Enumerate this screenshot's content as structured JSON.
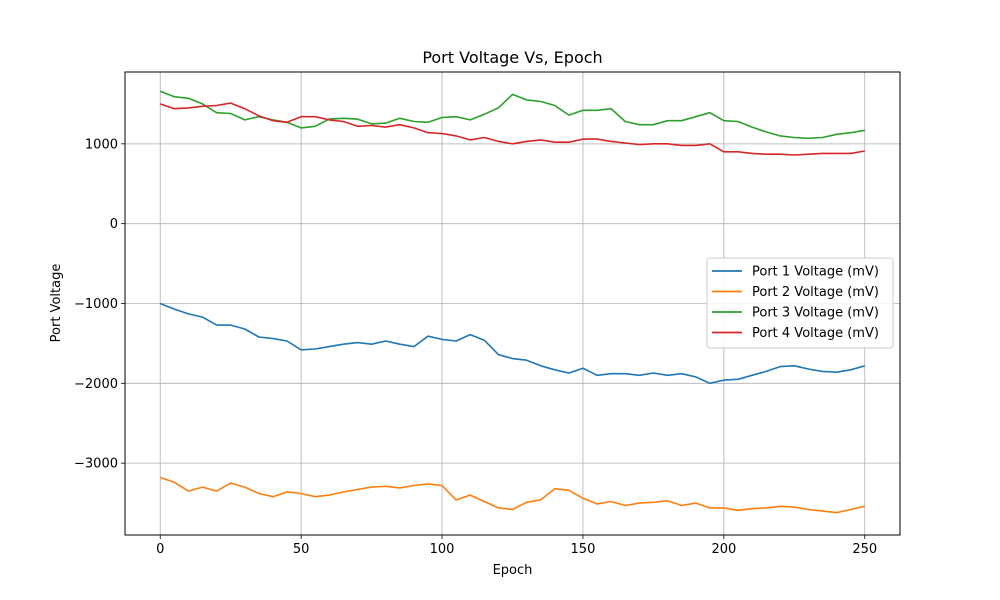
{
  "chart_data": {
    "type": "line",
    "title": "Port Voltage Vs, Epoch",
    "xlabel": "Epoch",
    "ylabel": "Port Voltage",
    "xlim": [
      -12.5,
      262.5
    ],
    "ylim": [
      -3900,
      1900
    ],
    "xticks": [
      0,
      50,
      100,
      150,
      200,
      250
    ],
    "yticks": [
      -3000,
      -2000,
      -1000,
      0,
      1000
    ],
    "grid": true,
    "legend_position": "center-right",
    "series": [
      {
        "name": "Port 1 Voltage (mV)",
        "color": "#1f77b4",
        "x": [
          0,
          5,
          10,
          15,
          20,
          25,
          30,
          35,
          40,
          45,
          50,
          55,
          60,
          65,
          70,
          75,
          80,
          85,
          90,
          95,
          100,
          105,
          110,
          115,
          120,
          125,
          130,
          135,
          140,
          145,
          150,
          155,
          160,
          165,
          170,
          175,
          180,
          185,
          190,
          195,
          200,
          205,
          210,
          215,
          220,
          225,
          230,
          235,
          240,
          245,
          250
        ],
        "y": [
          -1000,
          -1070,
          -1130,
          -1170,
          -1270,
          -1270,
          -1320,
          -1420,
          -1440,
          -1470,
          -1580,
          -1570,
          -1540,
          -1510,
          -1490,
          -1510,
          -1470,
          -1510,
          -1540,
          -1410,
          -1450,
          -1470,
          -1390,
          -1460,
          -1640,
          -1690,
          -1710,
          -1780,
          -1830,
          -1870,
          -1810,
          -1900,
          -1880,
          -1880,
          -1900,
          -1870,
          -1900,
          -1880,
          -1920,
          -2000,
          -1960,
          -1950,
          -1900,
          -1850,
          -1790,
          -1780,
          -1820,
          -1850,
          -1860,
          -1830,
          -1780
        ]
      },
      {
        "name": "Port 2 Voltage (mV)",
        "color": "#ff7f0e",
        "x": [
          0,
          5,
          10,
          15,
          20,
          25,
          30,
          35,
          40,
          45,
          50,
          55,
          60,
          65,
          70,
          75,
          80,
          85,
          90,
          95,
          100,
          105,
          110,
          115,
          120,
          125,
          130,
          135,
          140,
          145,
          150,
          155,
          160,
          165,
          170,
          175,
          180,
          185,
          190,
          195,
          200,
          205,
          210,
          215,
          220,
          225,
          230,
          235,
          240,
          245,
          250
        ],
        "y": [
          -3180,
          -3240,
          -3350,
          -3300,
          -3350,
          -3250,
          -3300,
          -3380,
          -3420,
          -3360,
          -3380,
          -3420,
          -3400,
          -3360,
          -3330,
          -3300,
          -3290,
          -3310,
          -3280,
          -3260,
          -3280,
          -3460,
          -3400,
          -3480,
          -3560,
          -3580,
          -3490,
          -3460,
          -3320,
          -3340,
          -3440,
          -3510,
          -3480,
          -3530,
          -3500,
          -3490,
          -3470,
          -3530,
          -3500,
          -3560,
          -3560,
          -3590,
          -3570,
          -3560,
          -3540,
          -3550,
          -3580,
          -3600,
          -3620,
          -3580,
          -3540
        ]
      },
      {
        "name": "Port 3 Voltage (mV)",
        "color": "#2ca02c",
        "x": [
          0,
          5,
          10,
          15,
          20,
          25,
          30,
          35,
          40,
          45,
          50,
          55,
          60,
          65,
          70,
          75,
          80,
          85,
          90,
          95,
          100,
          105,
          110,
          115,
          120,
          125,
          130,
          135,
          140,
          145,
          150,
          155,
          160,
          165,
          170,
          175,
          180,
          185,
          190,
          195,
          200,
          205,
          210,
          215,
          220,
          225,
          230,
          235,
          240,
          245,
          250
        ],
        "y": [
          1660,
          1590,
          1570,
          1500,
          1390,
          1380,
          1300,
          1340,
          1300,
          1270,
          1200,
          1220,
          1310,
          1320,
          1310,
          1250,
          1260,
          1320,
          1280,
          1270,
          1330,
          1340,
          1300,
          1370,
          1450,
          1620,
          1550,
          1530,
          1480,
          1360,
          1420,
          1420,
          1440,
          1280,
          1240,
          1240,
          1290,
          1290,
          1340,
          1390,
          1290,
          1280,
          1210,
          1150,
          1100,
          1080,
          1070,
          1080,
          1120,
          1140,
          1170
        ]
      },
      {
        "name": "Port 4 Voltage (mV)",
        "color": "#d62728",
        "x": [
          0,
          5,
          10,
          15,
          20,
          25,
          30,
          35,
          40,
          45,
          50,
          55,
          60,
          65,
          70,
          75,
          80,
          85,
          90,
          95,
          100,
          105,
          110,
          115,
          120,
          125,
          130,
          135,
          140,
          145,
          150,
          155,
          160,
          165,
          170,
          175,
          180,
          185,
          190,
          195,
          200,
          205,
          210,
          215,
          220,
          225,
          230,
          235,
          240,
          245,
          250
        ],
        "y": [
          1500,
          1440,
          1450,
          1470,
          1480,
          1510,
          1440,
          1350,
          1290,
          1270,
          1340,
          1340,
          1300,
          1280,
          1220,
          1230,
          1210,
          1240,
          1200,
          1140,
          1130,
          1100,
          1050,
          1080,
          1030,
          1000,
          1030,
          1050,
          1020,
          1020,
          1060,
          1060,
          1030,
          1010,
          990,
          1000,
          1000,
          980,
          980,
          1000,
          900,
          900,
          880,
          870,
          870,
          860,
          870,
          880,
          880,
          880,
          910
        ]
      }
    ]
  }
}
